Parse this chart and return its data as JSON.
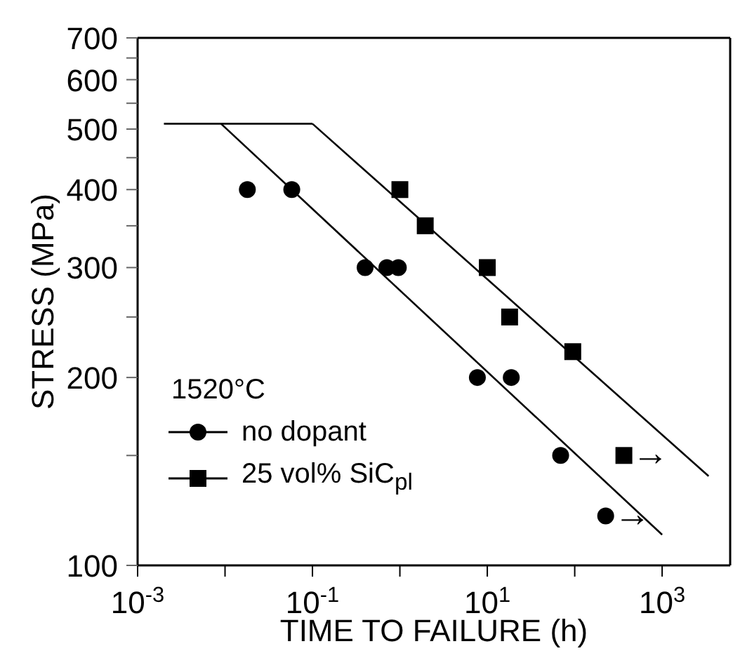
{
  "chart_data": {
    "type": "scatter",
    "xlabel": "TIME TO FAILURE  (h)",
    "ylabel": "STRESS (MPa)",
    "legend_title": "1520°C",
    "log": "xy",
    "legend": "bottom left",
    "xlim": [
      0.001,
      6000
    ],
    "ylim": [
      100,
      700
    ],
    "xticks": [
      {
        "value": 0.001,
        "label": "10$^{-3}$"
      },
      {
        "value": 0.01,
        "label": null
      },
      {
        "value": 0.1,
        "label": "10$^{-1}$"
      },
      {
        "value": 1,
        "label": null
      },
      {
        "value": 10,
        "label": "10$^{1}$"
      },
      {
        "value": 100,
        "label": null
      },
      {
        "value": 1000,
        "label": "10$^{3}$"
      }
    ],
    "yticks": [
      100,
      {
        "value": 150,
        "label": null
      },
      200,
      {
        "value": 250,
        "label": null
      },
      300,
      {
        "value": 350,
        "label": null
      },
      400,
      {
        "value": 450,
        "label": null
      },
      500,
      {
        "value": 550,
        "label": null
      },
      600,
      {
        "value": 650,
        "label": null
      },
      700
    ],
    "series": [
      {
        "name": "no dopant",
        "color": "#000000",
        "marker": "circle",
        "x": [
          0.018,
          0.058,
          0.4,
          0.71,
          0.96,
          7.7,
          18.8,
          69,
          226
        ],
        "values": [
          400,
          400,
          300,
          300,
          300,
          200,
          200,
          150,
          120
        ]
      },
      {
        "name": "25 vol% SiC$_{pl}$",
        "color": "#000000",
        "marker": "square",
        "x": [
          1.0,
          1.95,
          10,
          18,
          95,
          365
        ],
        "values": [
          400,
          350,
          300,
          250,
          220,
          150
        ]
      },
      {
        "type": "line",
        "color": "#000000",
        "x": [
          0.002,
          0.1
        ],
        "values": [
          510,
          510
        ]
      },
      {
        "type": "line",
        "color": "#000000",
        "x": [
          0.009,
          1000
        ],
        "values": [
          510,
          112
        ]
      },
      {
        "type": "line",
        "color": "#000000",
        "x": [
          0.1,
          3400
        ],
        "values": [
          510,
          139
        ]
      }
    ],
    "annotations": [
      {
        "text": "→",
        "x": 226,
        "y": 120
      },
      {
        "text": "→",
        "x": 365,
        "y": 150
      }
    ]
  }
}
